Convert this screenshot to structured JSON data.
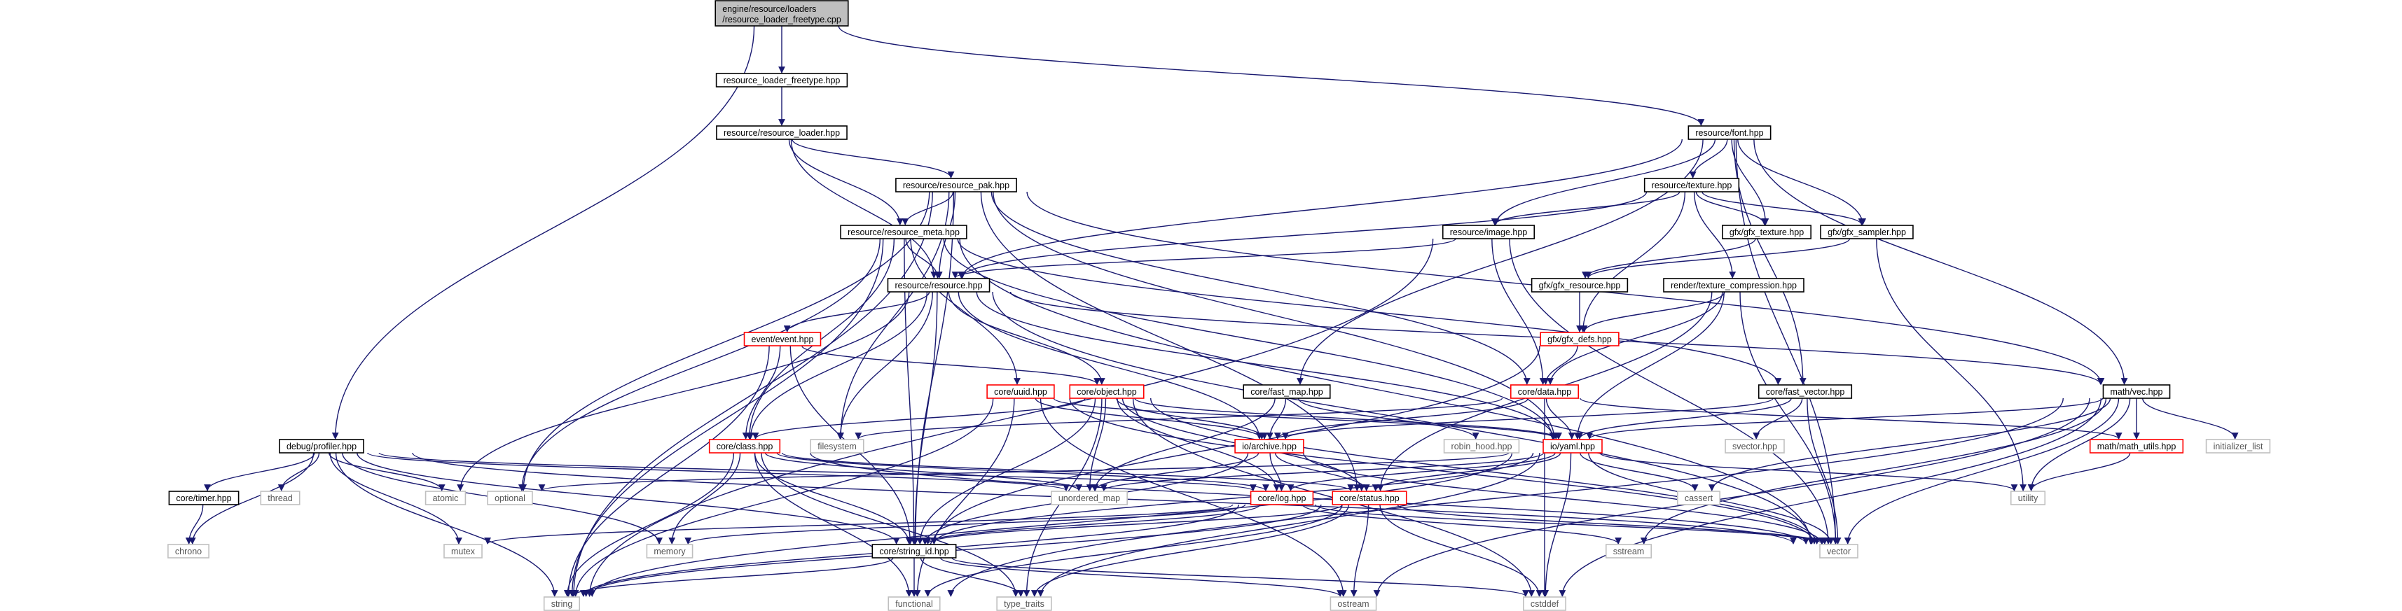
{
  "graph": {
    "colors": {
      "edge": "#191970",
      "header_fill": "#bfbfbf",
      "header_stroke": "#000000",
      "normal_stroke": "#000000",
      "red_stroke": "#ff0000",
      "system_stroke": "#bfbfbf",
      "text": "#000000",
      "system_text": "#555555"
    },
    "nodes": [
      {
        "id": "root",
        "label": "engine/resource/loaders\n/resource_loader_freetype.cpp",
        "kind": "header"
      },
      {
        "id": "rlf",
        "label": "resource_loader_freetype.hpp",
        "kind": "normal"
      },
      {
        "id": "rrl",
        "label": "resource/resource_loader.hpp",
        "kind": "normal"
      },
      {
        "id": "font",
        "label": "resource/font.hpp",
        "kind": "normal"
      },
      {
        "id": "pak",
        "label": "resource/resource_pak.hpp",
        "kind": "normal"
      },
      {
        "id": "meta",
        "label": "resource/resource_meta.hpp",
        "kind": "normal"
      },
      {
        "id": "texture",
        "label": "resource/texture.hpp",
        "kind": "normal"
      },
      {
        "id": "gfxtex",
        "label": "gfx/gfx_texture.hpp",
        "kind": "normal"
      },
      {
        "id": "sampler",
        "label": "gfx/gfx_sampler.hpp",
        "kind": "normal"
      },
      {
        "id": "image",
        "label": "resource/image.hpp",
        "kind": "normal"
      },
      {
        "id": "resource",
        "label": "resource/resource.hpp",
        "kind": "normal"
      },
      {
        "id": "gfxres",
        "label": "gfx/gfx_resource.hpp",
        "kind": "normal"
      },
      {
        "id": "rtc",
        "label": "render/texture_compression.hpp",
        "kind": "normal"
      },
      {
        "id": "gfxdefs",
        "label": "gfx/gfx_defs.hpp",
        "kind": "red"
      },
      {
        "id": "event",
        "label": "event/event.hpp",
        "kind": "red"
      },
      {
        "id": "data",
        "label": "core/data.hpp",
        "kind": "red"
      },
      {
        "id": "fastmap",
        "label": "core/fast_map.hpp",
        "kind": "normal"
      },
      {
        "id": "fastvec",
        "label": "core/fast_vector.hpp",
        "kind": "normal"
      },
      {
        "id": "vec",
        "label": "math/vec.hpp",
        "kind": "normal"
      },
      {
        "id": "uuid",
        "label": "core/uuid.hpp",
        "kind": "red"
      },
      {
        "id": "object",
        "label": "core/object.hpp",
        "kind": "red"
      },
      {
        "id": "profiler",
        "label": "debug/profiler.hpp",
        "kind": "normal"
      },
      {
        "id": "filesystem",
        "label": "filesystem",
        "kind": "system"
      },
      {
        "id": "archive",
        "label": "io/archive.hpp",
        "kind": "red"
      },
      {
        "id": "robin",
        "label": "robin_hood.hpp",
        "kind": "system"
      },
      {
        "id": "yaml",
        "label": "io/yaml.hpp",
        "kind": "red"
      },
      {
        "id": "svector",
        "label": "svector.hpp",
        "kind": "system"
      },
      {
        "id": "mathutils",
        "label": "math/math_utils.hpp",
        "kind": "red"
      },
      {
        "id": "initlist",
        "label": "initializer_list",
        "kind": "system"
      },
      {
        "id": "class",
        "label": "core/class.hpp",
        "kind": "red"
      },
      {
        "id": "timer",
        "label": "core/timer.hpp",
        "kind": "normal"
      },
      {
        "id": "thread",
        "label": "thread",
        "kind": "system"
      },
      {
        "id": "atomic",
        "label": "atomic",
        "kind": "system"
      },
      {
        "id": "optional",
        "label": "optional",
        "kind": "system"
      },
      {
        "id": "unordered",
        "label": "unordered_map",
        "kind": "system"
      },
      {
        "id": "log",
        "label": "core/log.hpp",
        "kind": "red"
      },
      {
        "id": "status",
        "label": "core/status.hpp",
        "kind": "red"
      },
      {
        "id": "cassert",
        "label": "cassert",
        "kind": "system"
      },
      {
        "id": "utility",
        "label": "utility",
        "kind": "system"
      },
      {
        "id": "chrono",
        "label": "chrono",
        "kind": "system"
      },
      {
        "id": "mutex",
        "label": "mutex",
        "kind": "system"
      },
      {
        "id": "memory",
        "label": "memory",
        "kind": "system"
      },
      {
        "id": "stringid",
        "label": "core/string_id.hpp",
        "kind": "normal"
      },
      {
        "id": "sstream",
        "label": "sstream",
        "kind": "system"
      },
      {
        "id": "vector",
        "label": "vector",
        "kind": "system"
      },
      {
        "id": "string",
        "label": "string",
        "kind": "system"
      },
      {
        "id": "functional",
        "label": "functional",
        "kind": "system"
      },
      {
        "id": "typetraits",
        "label": "type_traits",
        "kind": "system"
      },
      {
        "id": "ostream",
        "label": "ostream",
        "kind": "system"
      },
      {
        "id": "cstddef",
        "label": "cstddef",
        "kind": "system"
      }
    ],
    "edges": [
      [
        "root",
        "rlf"
      ],
      [
        "root",
        "font"
      ],
      [
        "root",
        "profiler"
      ],
      [
        "rlf",
        "rrl"
      ],
      [
        "rrl",
        "pak"
      ],
      [
        "rrl",
        "meta"
      ],
      [
        "rrl",
        "resource"
      ],
      [
        "font",
        "texture"
      ],
      [
        "font",
        "image"
      ],
      [
        "font",
        "gfxtex"
      ],
      [
        "font",
        "sampler"
      ],
      [
        "font",
        "resource"
      ],
      [
        "font",
        "fastmap"
      ],
      [
        "font",
        "fastvec"
      ],
      [
        "font",
        "vec"
      ],
      [
        "font",
        "vector"
      ],
      [
        "pak",
        "meta"
      ],
      [
        "pak",
        "resource"
      ],
      [
        "pak",
        "filesystem"
      ],
      [
        "pak",
        "yaml"
      ],
      [
        "pak",
        "string"
      ],
      [
        "pak",
        "optional"
      ],
      [
        "pak",
        "vec"
      ],
      [
        "pak",
        "data"
      ],
      [
        "pak",
        "status"
      ],
      [
        "pak",
        "stringid"
      ],
      [
        "meta",
        "resource"
      ],
      [
        "meta",
        "class"
      ],
      [
        "meta",
        "uuid"
      ],
      [
        "meta",
        "yaml"
      ],
      [
        "meta",
        "optional"
      ],
      [
        "meta",
        "stringid"
      ],
      [
        "meta",
        "vector"
      ],
      [
        "meta",
        "string"
      ],
      [
        "meta",
        "fastvec"
      ],
      [
        "texture",
        "gfxtex"
      ],
      [
        "texture",
        "sampler"
      ],
      [
        "texture",
        "image"
      ],
      [
        "texture",
        "resource"
      ],
      [
        "texture",
        "rtc"
      ],
      [
        "texture",
        "gfxdefs"
      ],
      [
        "image",
        "resource"
      ],
      [
        "image",
        "data"
      ],
      [
        "image",
        "vector"
      ],
      [
        "image",
        "string"
      ],
      [
        "sampler",
        "gfxres"
      ],
      [
        "sampler",
        "utility"
      ],
      [
        "gfxtex",
        "gfxres"
      ],
      [
        "resource",
        "event"
      ],
      [
        "resource",
        "object"
      ],
      [
        "resource",
        "class"
      ],
      [
        "resource",
        "stringid"
      ],
      [
        "resource",
        "archive"
      ],
      [
        "resource",
        "yaml"
      ],
      [
        "resource",
        "filesystem"
      ],
      [
        "resource",
        "atomic"
      ],
      [
        "resource",
        "vec"
      ],
      [
        "resource",
        "vector"
      ],
      [
        "gfxres",
        "gfxdefs"
      ],
      [
        "rtc",
        "gfxdefs"
      ],
      [
        "rtc",
        "data"
      ],
      [
        "rtc",
        "yaml"
      ],
      [
        "rtc",
        "vector"
      ],
      [
        "rtc",
        "status"
      ],
      [
        "gfxdefs",
        "data"
      ],
      [
        "gfxdefs",
        "stringid"
      ],
      [
        "event",
        "object"
      ],
      [
        "event",
        "class"
      ],
      [
        "event",
        "stringid"
      ],
      [
        "event",
        "string"
      ],
      [
        "data",
        "archive"
      ],
      [
        "data",
        "yaml"
      ],
      [
        "data",
        "mathutils"
      ],
      [
        "data",
        "filesystem"
      ],
      [
        "data",
        "cstddef"
      ],
      [
        "fastmap",
        "robin"
      ],
      [
        "fastmap",
        "archive"
      ],
      [
        "fastmap",
        "unordered"
      ],
      [
        "fastvec",
        "svector"
      ],
      [
        "fastvec",
        "archive"
      ],
      [
        "fastvec",
        "yaml"
      ],
      [
        "fastvec",
        "vector"
      ],
      [
        "vec",
        "mathutils"
      ],
      [
        "vec",
        "yaml"
      ],
      [
        "vec",
        "initlist"
      ],
      [
        "vec",
        "cassert"
      ],
      [
        "vec",
        "utility"
      ],
      [
        "vec",
        "ostream"
      ],
      [
        "vec",
        "cstddef"
      ],
      [
        "vec",
        "functional"
      ],
      [
        "vec",
        "sstream"
      ],
      [
        "vec",
        "vector"
      ],
      [
        "mathutils",
        "utility"
      ],
      [
        "uuid",
        "archive"
      ],
      [
        "uuid",
        "yaml"
      ],
      [
        "uuid",
        "string"
      ],
      [
        "uuid",
        "functional"
      ],
      [
        "uuid",
        "ostream"
      ],
      [
        "uuid",
        "vector"
      ],
      [
        "object",
        "class"
      ],
      [
        "object",
        "archive"
      ],
      [
        "object",
        "yaml"
      ],
      [
        "object",
        "stringid"
      ],
      [
        "object",
        "unordered"
      ],
      [
        "object",
        "typetraits"
      ],
      [
        "object",
        "status"
      ],
      [
        "object",
        "log"
      ],
      [
        "object",
        "vector"
      ],
      [
        "object",
        "cstddef"
      ],
      [
        "profiler",
        "timer"
      ],
      [
        "profiler",
        "thread"
      ],
      [
        "profiler",
        "atomic"
      ],
      [
        "profiler",
        "chrono"
      ],
      [
        "profiler",
        "mutex"
      ],
      [
        "profiler",
        "memory"
      ],
      [
        "profiler",
        "stringid"
      ],
      [
        "profiler",
        "unordered"
      ],
      [
        "profiler",
        "string"
      ],
      [
        "profiler",
        "vector"
      ],
      [
        "profiler",
        "log"
      ],
      [
        "timer",
        "chrono"
      ],
      [
        "archive",
        "log"
      ],
      [
        "archive",
        "status"
      ],
      [
        "archive",
        "stringid"
      ],
      [
        "archive",
        "unordered"
      ],
      [
        "archive",
        "vector"
      ],
      [
        "yaml",
        "status"
      ],
      [
        "yaml",
        "log"
      ],
      [
        "yaml",
        "stringid"
      ],
      [
        "yaml",
        "unordered"
      ],
      [
        "yaml",
        "cassert"
      ],
      [
        "yaml",
        "optional"
      ],
      [
        "yaml",
        "utility"
      ],
      [
        "yaml",
        "vector"
      ],
      [
        "yaml",
        "cstddef"
      ],
      [
        "yaml",
        "string"
      ],
      [
        "yaml",
        "typetraits"
      ],
      [
        "class",
        "stringid"
      ],
      [
        "class",
        "log"
      ],
      [
        "class",
        "status"
      ],
      [
        "class",
        "unordered"
      ],
      [
        "class",
        "memory"
      ],
      [
        "class",
        "functional"
      ],
      [
        "class",
        "string"
      ],
      [
        "class",
        "typetraits"
      ],
      [
        "class",
        "vector"
      ],
      [
        "log",
        "stringid"
      ],
      [
        "log",
        "memory"
      ],
      [
        "log",
        "mutex"
      ],
      [
        "log",
        "sstream"
      ],
      [
        "log",
        "string"
      ],
      [
        "log",
        "vector"
      ],
      [
        "status",
        "stringid"
      ],
      [
        "status",
        "string"
      ],
      [
        "status",
        "functional"
      ],
      [
        "status",
        "typetraits"
      ],
      [
        "status",
        "ostream"
      ],
      [
        "status",
        "cstddef"
      ],
      [
        "status",
        "vector"
      ],
      [
        "stringid",
        "string"
      ],
      [
        "stringid",
        "functional"
      ],
      [
        "stringid",
        "typetraits"
      ],
      [
        "stringid",
        "ostream"
      ],
      [
        "stringid",
        "cstddef"
      ]
    ]
  }
}
